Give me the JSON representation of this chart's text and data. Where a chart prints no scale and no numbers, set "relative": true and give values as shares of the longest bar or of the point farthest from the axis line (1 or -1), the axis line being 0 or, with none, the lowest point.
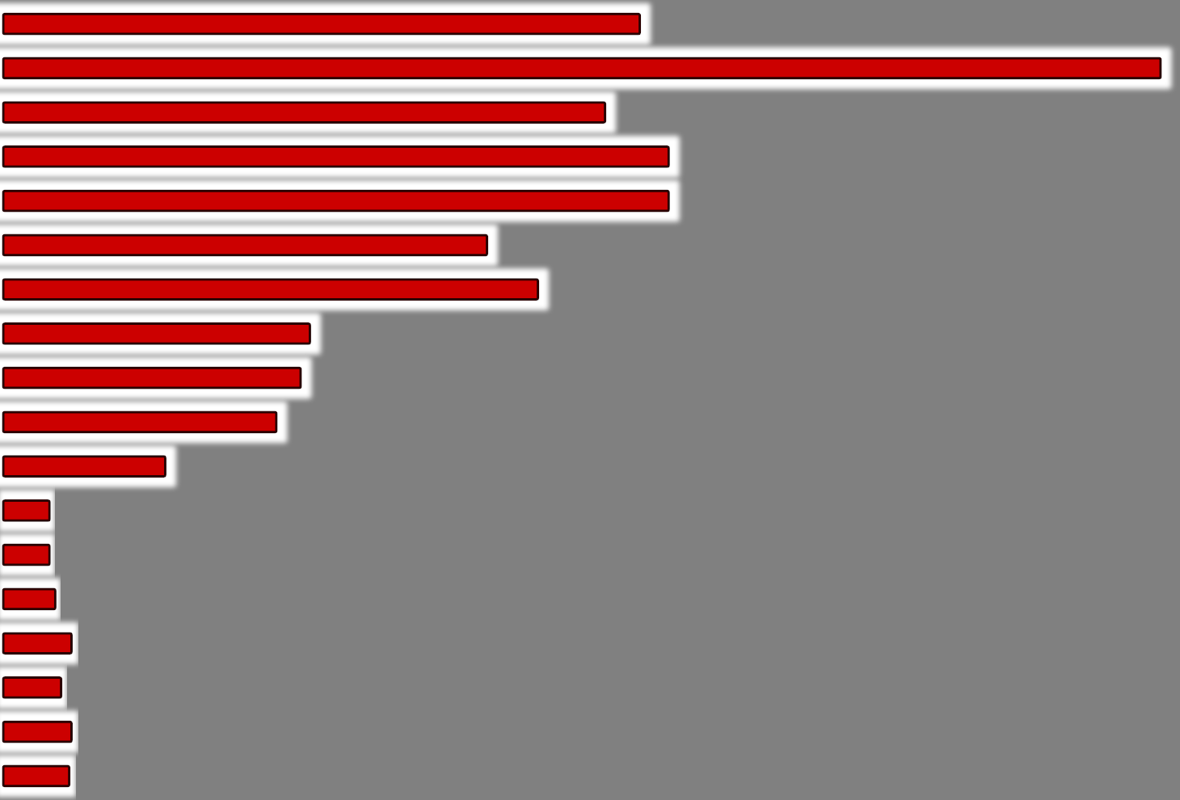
{
  "chart_data": {
    "type": "bar",
    "orientation": "horizontal",
    "relative": true,
    "categories": [
      null,
      null,
      null,
      null,
      null,
      null,
      null,
      null,
      null,
      null,
      null,
      null,
      null,
      null,
      null,
      null,
      null,
      null
    ],
    "values": [
      0.55,
      1,
      0.52,
      0.575,
      0.575,
      0.418,
      0.462,
      0.265,
      0.257,
      0.236,
      0.14,
      0.04,
      0.04,
      0.045,
      0.059,
      0.05,
      0.059,
      0.057
    ],
    "color": "#cc0000"
  }
}
